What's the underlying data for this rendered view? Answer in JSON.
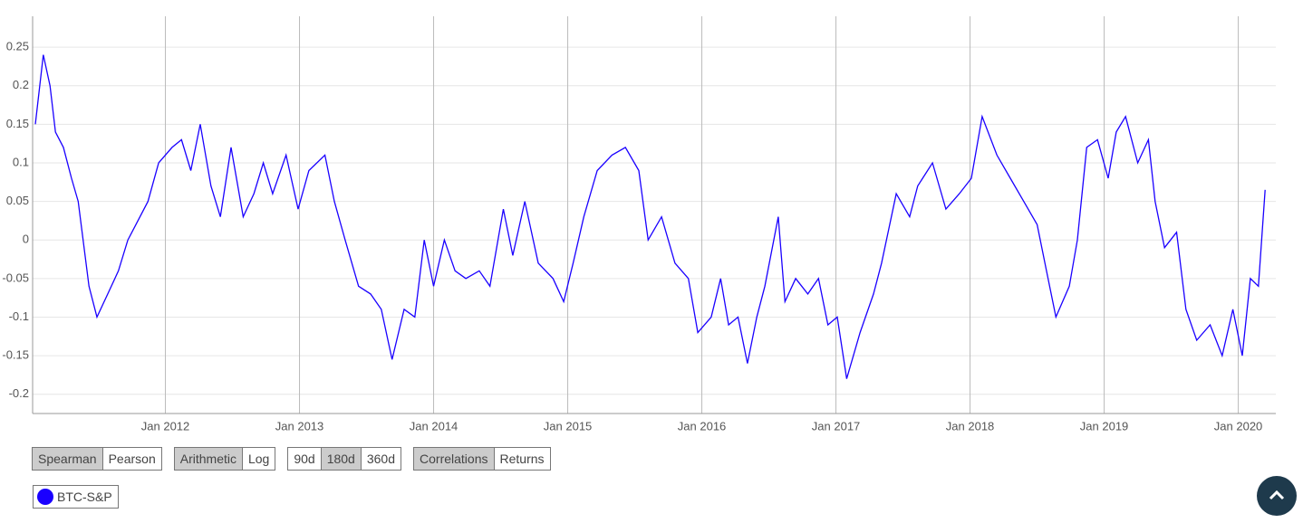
{
  "chart_data": {
    "type": "line",
    "series": [
      {
        "name": "BTC-S&P",
        "color": "#1a00ff",
        "x": [
          2011.03,
          2011.09,
          2011.14,
          2011.18,
          2011.24,
          2011.3,
          2011.35,
          2011.43,
          2011.49,
          2011.57,
          2011.65,
          2011.72,
          2011.78,
          2011.87,
          2011.95,
          2012.05,
          2012.12,
          2012.19,
          2012.26,
          2012.34,
          2012.41,
          2012.49,
          2012.58,
          2012.66,
          2012.73,
          2012.8,
          2012.9,
          2012.99,
          2013.07,
          2013.19,
          2013.26,
          2013.34,
          2013.44,
          2013.53,
          2013.61,
          2013.69,
          2013.78,
          2013.86,
          2013.93,
          2014.0,
          2014.08,
          2014.16,
          2014.24,
          2014.34,
          2014.42,
          2014.52,
          2014.59,
          2014.68,
          2014.78,
          2014.89,
          2014.97,
          2015.04,
          2015.12,
          2015.22,
          2015.33,
          2015.43,
          2015.53,
          2015.6,
          2015.7,
          2015.8,
          2015.9,
          2015.97,
          2016.07,
          2016.14,
          2016.2,
          2016.27,
          2016.34,
          2016.41,
          2016.47,
          2016.57,
          2016.62,
          2016.7,
          2016.79,
          2016.87,
          2016.94,
          2017.01,
          2017.08,
          2017.18,
          2017.28,
          2017.34,
          2017.45,
          2017.55,
          2017.61,
          2017.72,
          2017.82,
          2017.92,
          2018.01,
          2018.09,
          2018.2,
          2018.3,
          2018.4,
          2018.5,
          2018.57,
          2018.64,
          2018.74,
          2018.8,
          2018.87,
          2018.95,
          2019.03,
          2019.09,
          2019.16,
          2019.25,
          2019.33,
          2019.38,
          2019.45,
          2019.54,
          2019.61,
          2019.69,
          2019.79,
          2019.88,
          2019.96,
          2020.03,
          2020.09,
          2020.15,
          2020.2
        ],
        "values": [
          0.15,
          0.24,
          0.2,
          0.14,
          0.12,
          0.08,
          0.05,
          -0.06,
          -0.1,
          -0.07,
          -0.04,
          0.0,
          0.02,
          0.05,
          0.1,
          0.12,
          0.13,
          0.09,
          0.15,
          0.07,
          0.03,
          0.12,
          0.03,
          0.06,
          0.1,
          0.06,
          0.11,
          0.04,
          0.09,
          0.11,
          0.05,
          0.0,
          -0.06,
          -0.07,
          -0.09,
          -0.155,
          -0.09,
          -0.1,
          0.0,
          -0.06,
          0.0,
          -0.04,
          -0.05,
          -0.04,
          -0.06,
          0.04,
          -0.02,
          0.05,
          -0.03,
          -0.05,
          -0.08,
          -0.03,
          0.03,
          0.09,
          0.11,
          0.12,
          0.09,
          0.0,
          0.03,
          -0.03,
          -0.05,
          -0.12,
          -0.1,
          -0.05,
          -0.11,
          -0.1,
          -0.16,
          -0.1,
          -0.06,
          0.03,
          -0.08,
          -0.05,
          -0.07,
          -0.05,
          -0.11,
          -0.1,
          -0.18,
          -0.12,
          -0.07,
          -0.03,
          0.06,
          0.03,
          0.07,
          0.1,
          0.04,
          0.06,
          0.08,
          0.16,
          0.11,
          0.08,
          0.05,
          0.02,
          -0.04,
          -0.1,
          -0.06,
          0.0,
          0.12,
          0.13,
          0.08,
          0.14,
          0.16,
          0.1,
          0.13,
          0.05,
          -0.01,
          0.01,
          -0.09,
          -0.13,
          -0.11,
          -0.15,
          -0.09,
          -0.15,
          -0.05,
          -0.06,
          0.065
        ]
      }
    ],
    "xlim": [
      2011.01,
      2020.28
    ],
    "xticks": [
      {
        "value": 2012,
        "label": "Jan 2012"
      },
      {
        "value": 2013,
        "label": "Jan 2013"
      },
      {
        "value": 2014,
        "label": "Jan 2014"
      },
      {
        "value": 2015,
        "label": "Jan 2015"
      },
      {
        "value": 2016,
        "label": "Jan 2016"
      },
      {
        "value": 2017,
        "label": "Jan 2017"
      },
      {
        "value": 2018,
        "label": "Jan 2018"
      },
      {
        "value": 2019,
        "label": "Jan 2019"
      },
      {
        "value": 2020,
        "label": "Jan 2020"
      }
    ],
    "ylim": [
      -0.225,
      0.29
    ],
    "yticks": [
      -0.2,
      -0.15,
      -0.1,
      -0.05,
      0,
      0.05,
      0.1,
      0.15,
      0.2,
      0.25
    ],
    "grid": true
  },
  "controls": [
    {
      "options": [
        "Spearman",
        "Pearson"
      ],
      "active": 0
    },
    {
      "options": [
        "Arithmetic",
        "Log"
      ],
      "active": 0
    },
    {
      "options": [
        "90d",
        "180d",
        "360d"
      ],
      "active": 1
    },
    {
      "options": [
        "Correlations",
        "Returns"
      ],
      "active": 0
    }
  ]
}
